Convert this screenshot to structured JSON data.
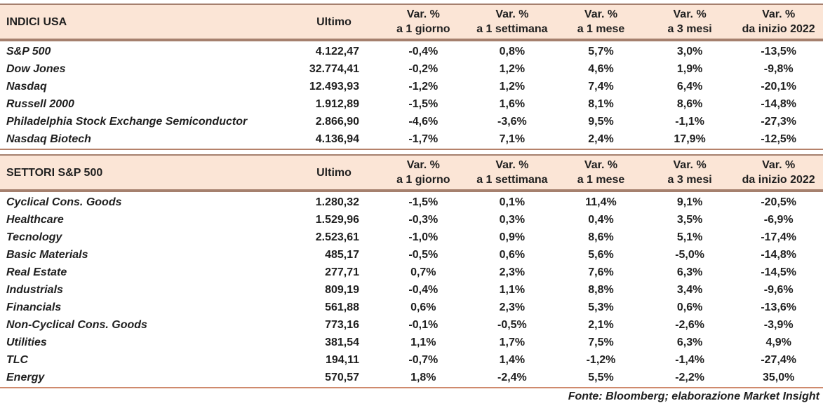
{
  "page": {
    "source_note": "Fonte: Bloomberg; elaborazione Market Insight"
  },
  "colors": {
    "header_background": "#fbe5d6",
    "header_border": "#a5806e",
    "table_bottom_border": "#cf8a6d",
    "text": "#1f1f1f"
  },
  "tables": [
    {
      "title": "INDICI USA",
      "columns": {
        "ultimo": "Ultimo",
        "var_top": "Var. %",
        "var_sub": [
          "a 1 giorno",
          "a 1 settimana",
          "a 1 mese",
          "a 3 mesi",
          "da inizio 2022"
        ]
      },
      "rows": [
        {
          "name": "S&P 500",
          "ultimo": "4.122,47",
          "vars": [
            "-0,4%",
            "0,8%",
            "5,7%",
            "3,0%",
            "-13,5%"
          ]
        },
        {
          "name": "Dow Jones",
          "ultimo": "32.774,41",
          "vars": [
            "-0,2%",
            "1,2%",
            "4,6%",
            "1,9%",
            "-9,8%"
          ]
        },
        {
          "name": "Nasdaq",
          "ultimo": "12.493,93",
          "vars": [
            "-1,2%",
            "1,2%",
            "7,4%",
            "6,4%",
            "-20,1%"
          ]
        },
        {
          "name": "Russell 2000",
          "ultimo": "1.912,89",
          "vars": [
            "-1,5%",
            "1,6%",
            "8,1%",
            "8,6%",
            "-14,8%"
          ]
        },
        {
          "name": "Philadelphia Stock Exchange Semiconductor",
          "ultimo": "2.866,90",
          "vars": [
            "-4,6%",
            "-3,6%",
            "9,5%",
            "-1,1%",
            "-27,3%"
          ]
        },
        {
          "name": "Nasdaq Biotech",
          "ultimo": "4.136,94",
          "vars": [
            "-1,7%",
            "7,1%",
            "2,4%",
            "17,9%",
            "-12,5%"
          ]
        }
      ]
    },
    {
      "title": "SETTORI S&P 500",
      "columns": {
        "ultimo": "Ultimo",
        "var_top": "Var. %",
        "var_sub": [
          "a 1 giorno",
          "a 1 settimana",
          "a 1 mese",
          "a 3 mesi",
          "da inizio 2022"
        ]
      },
      "rows": [
        {
          "name": "Cyclical Cons. Goods",
          "ultimo": "1.280,32",
          "vars": [
            "-1,5%",
            "0,1%",
            "11,4%",
            "9,1%",
            "-20,5%"
          ]
        },
        {
          "name": "Healthcare",
          "ultimo": "1.529,96",
          "vars": [
            "-0,3%",
            "0,3%",
            "0,4%",
            "3,5%",
            "-6,9%"
          ]
        },
        {
          "name": "Tecnology",
          "ultimo": "2.523,61",
          "vars": [
            "-1,0%",
            "0,9%",
            "8,6%",
            "5,1%",
            "-17,4%"
          ]
        },
        {
          "name": "Basic Materials",
          "ultimo": "485,17",
          "vars": [
            "-0,5%",
            "0,6%",
            "5,6%",
            "-5,0%",
            "-14,8%"
          ]
        },
        {
          "name": "Real Estate",
          "ultimo": "277,71",
          "vars": [
            "0,7%",
            "2,3%",
            "7,6%",
            "6,3%",
            "-14,5%"
          ]
        },
        {
          "name": "Industrials",
          "ultimo": "809,19",
          "vars": [
            "-0,4%",
            "1,1%",
            "8,8%",
            "3,4%",
            "-9,6%"
          ]
        },
        {
          "name": "Financials",
          "ultimo": "561,88",
          "vars": [
            "0,6%",
            "2,3%",
            "5,3%",
            "0,6%",
            "-13,6%"
          ]
        },
        {
          "name": "Non-Cyclical Cons. Goods",
          "ultimo": "773,16",
          "vars": [
            "-0,1%",
            "-0,5%",
            "2,1%",
            "-2,6%",
            "-3,9%"
          ]
        },
        {
          "name": "Utilities",
          "ultimo": "381,54",
          "vars": [
            "1,1%",
            "1,7%",
            "7,5%",
            "6,3%",
            "4,9%"
          ]
        },
        {
          "name": "TLC",
          "ultimo": "194,11",
          "vars": [
            "-0,7%",
            "1,4%",
            "-1,2%",
            "-1,4%",
            "-27,4%"
          ]
        },
        {
          "name": "Energy",
          "ultimo": "570,57",
          "vars": [
            "1,8%",
            "-2,4%",
            "5,5%",
            "-2,2%",
            "35,0%"
          ]
        }
      ]
    }
  ]
}
